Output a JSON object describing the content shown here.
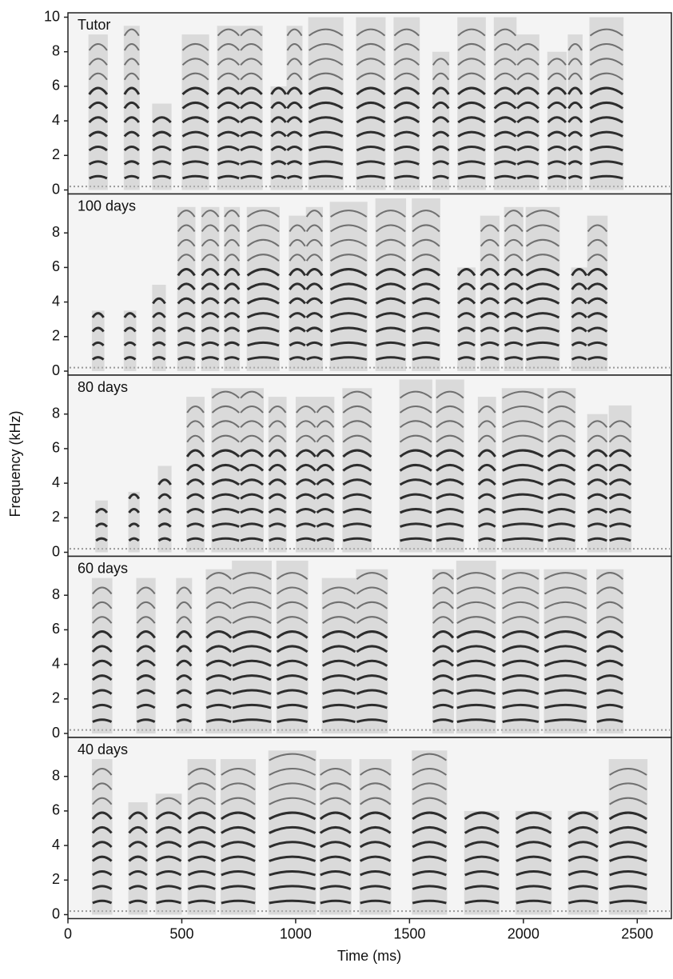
{
  "axis_labels": {
    "xlabel": "Time (ms)",
    "ylabel": "Frequency (kHz)"
  },
  "chart_data": [
    {
      "type": "spectrogram",
      "title": "Tutor",
      "xlim": [
        0,
        2650
      ],
      "ylim": [
        0,
        10
      ],
      "yticks": [
        0,
        2,
        4,
        6,
        8,
        10
      ],
      "x_start": [
        90,
        245,
        370,
        500,
        655,
        755,
        890,
        960,
        1055,
        1265,
        1430,
        1600,
        1710,
        1870,
        1970,
        2105,
        2195,
        2290
      ],
      "x_end": [
        175,
        315,
        455,
        620,
        755,
        855,
        960,
        1030,
        1210,
        1395,
        1545,
        1675,
        1835,
        1970,
        2070,
        2190,
        2260,
        2440
      ],
      "values": [
        9,
        9.5,
        5,
        9,
        9.5,
        9.5,
        6,
        9.5,
        10,
        10,
        10,
        8,
        10,
        10,
        9,
        8,
        9,
        10
      ]
    },
    {
      "type": "spectrogram",
      "title": "100 days",
      "xlim": [
        0,
        2650
      ],
      "ylim": [
        0,
        10
      ],
      "yticks": [
        0,
        2,
        4,
        6,
        8
      ],
      "x_start": [
        105,
        245,
        370,
        480,
        585,
        685,
        785,
        970,
        1045,
        1150,
        1350,
        1510,
        1710,
        1810,
        1915,
        2010,
        2210,
        2280
      ],
      "x_end": [
        160,
        300,
        430,
        560,
        665,
        755,
        930,
        1045,
        1120,
        1315,
        1485,
        1635,
        1790,
        1895,
        2000,
        2160,
        2280,
        2370
      ],
      "values": [
        3.5,
        3.5,
        5,
        9.5,
        9.5,
        9.5,
        9.5,
        9,
        9.5,
        9.8,
        10,
        10,
        6,
        9,
        9.5,
        9.5,
        6,
        9
      ]
    },
    {
      "type": "spectrogram",
      "title": "80 days",
      "xlim": [
        0,
        2650
      ],
      "ylim": [
        0,
        10
      ],
      "yticks": [
        0,
        2,
        4,
        6,
        8
      ],
      "x_start": [
        120,
        265,
        395,
        520,
        630,
        755,
        880,
        1000,
        1090,
        1205,
        1455,
        1615,
        1800,
        1905,
        2105,
        2280,
        2375
      ],
      "x_end": [
        175,
        315,
        455,
        600,
        755,
        860,
        960,
        1090,
        1170,
        1335,
        1600,
        1740,
        1880,
        2090,
        2230,
        2370,
        2475
      ],
      "values": [
        3,
        3.5,
        5,
        9,
        9.5,
        9.5,
        9,
        9,
        9,
        9.5,
        10,
        10,
        9,
        9.5,
        9.5,
        8,
        8.5
      ]
    },
    {
      "type": "spectrogram",
      "title": "60 days",
      "xlim": [
        0,
        2650
      ],
      "ylim": [
        0,
        10
      ],
      "yticks": [
        0,
        2,
        4,
        6,
        8
      ],
      "x_start": [
        105,
        300,
        475,
        605,
        720,
        915,
        1115,
        1265,
        1600,
        1705,
        1905,
        2090,
        2320
      ],
      "x_end": [
        195,
        385,
        545,
        720,
        895,
        1055,
        1265,
        1405,
        1695,
        1880,
        2070,
        2280,
        2440
      ],
      "values": [
        9,
        9,
        9,
        9.5,
        10,
        10,
        9,
        9.5,
        9.5,
        10,
        9.5,
        9.5,
        9.5
      ]
    },
    {
      "type": "spectrogram",
      "title": "40 days",
      "xlim": [
        0,
        2650
      ],
      "ylim": [
        0,
        10
      ],
      "yticks": [
        0,
        2,
        4,
        6,
        8
      ],
      "xticks": [
        0,
        500,
        1000,
        1500,
        2000,
        2500
      ],
      "x_start": [
        105,
        265,
        385,
        525,
        670,
        880,
        1105,
        1280,
        1510,
        1740,
        1965,
        2195,
        2375
      ],
      "x_end": [
        195,
        350,
        500,
        650,
        825,
        1090,
        1245,
        1420,
        1665,
        1895,
        2125,
        2330,
        2545
      ],
      "values": [
        9,
        6.5,
        7,
        9,
        9,
        9.5,
        9,
        9,
        9.5,
        6,
        6,
        6,
        9
      ]
    }
  ]
}
